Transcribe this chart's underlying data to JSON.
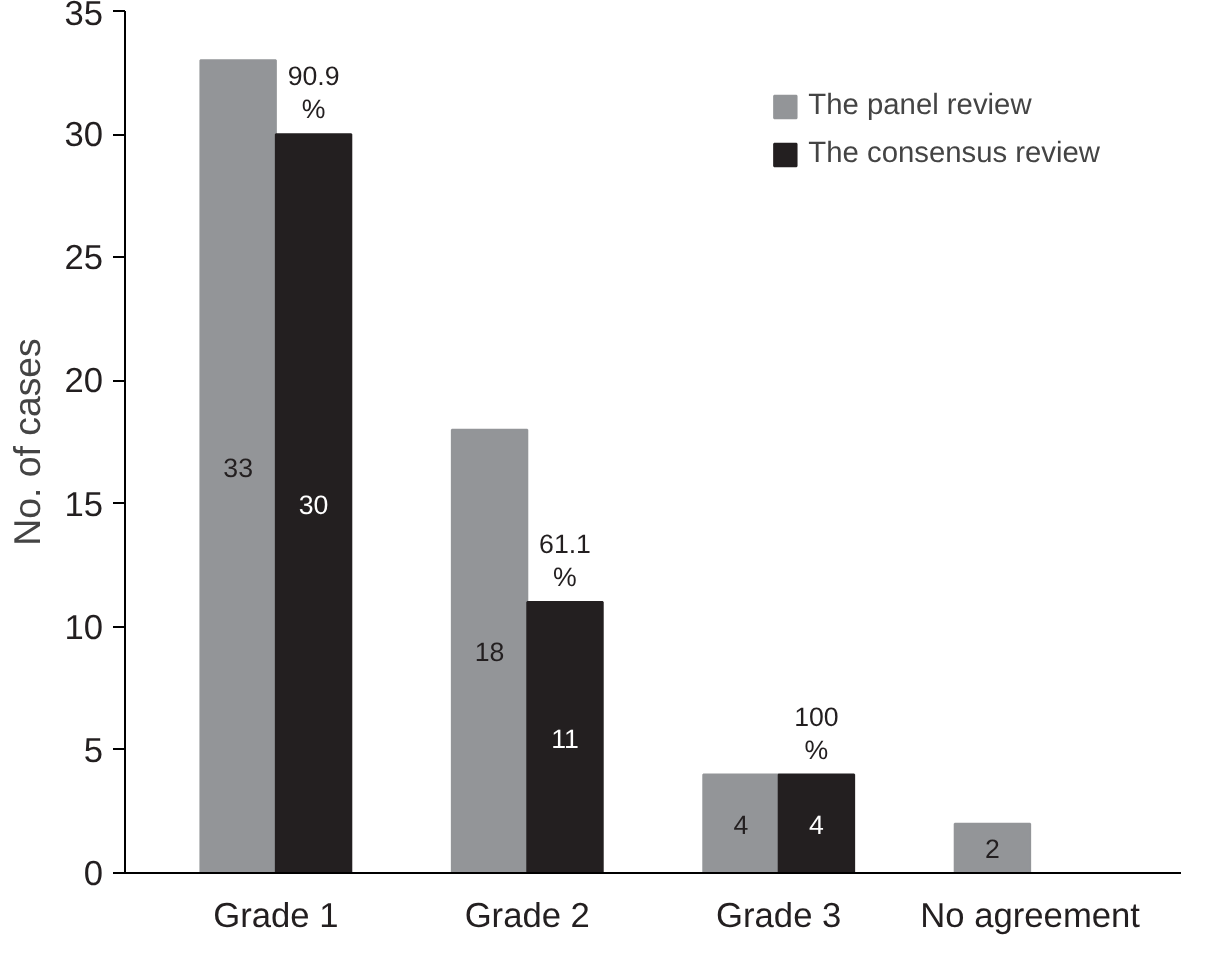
{
  "chart_data": {
    "type": "bar",
    "ylabel": "No. of cases",
    "categories": [
      "Grade 1",
      "Grade 2",
      "Grade 3",
      "No agreement"
    ],
    "series": [
      {
        "name": "The panel review",
        "color": "#939598",
        "values": [
          33,
          18,
          4,
          2
        ]
      },
      {
        "name": "The consensus review",
        "color": "#231f20",
        "values": [
          30,
          11,
          4,
          null
        ]
      }
    ],
    "ylim": [
      0,
      35
    ],
    "yticks": [
      0,
      5,
      10,
      15,
      20,
      25,
      30,
      35
    ],
    "grid": false,
    "legend": "top right",
    "data_labels": true,
    "annotations": [
      {
        "text": "90.9\n%",
        "x": "Grade 1",
        "y": 30
      },
      {
        "text": "61.1\n%",
        "x": "Grade 2",
        "y": 11
      },
      {
        "text": "100\n%",
        "x": "Grade 3",
        "y": 4
      }
    ]
  }
}
